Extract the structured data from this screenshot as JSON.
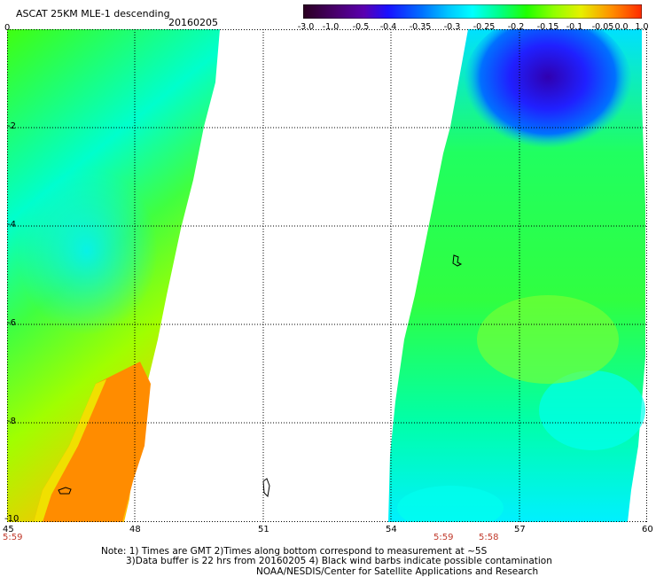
{
  "header": {
    "title": "ASCAT 25KM MLE-1 descending",
    "date": "20160205"
  },
  "colorbar": {
    "labels": [
      "-3.0",
      "-1.0",
      "-0.5",
      "-0.4",
      "-0.35",
      "-0.3",
      "-0.25",
      "-0.2",
      "-0.15",
      "-0.1",
      "-0.05",
      "0.0",
      "1.0"
    ],
    "colors": [
      "#2a0020",
      "#5a0090",
      "#1a10ff",
      "#0060ff",
      "#00b8ff",
      "#00ffff",
      "#00ff88",
      "#20ff00",
      "#90ff00",
      "#e6f000",
      "#ff9000",
      "#ff3a00"
    ]
  },
  "map": {
    "y_axis": [
      "0",
      "-2",
      "-4",
      "-6",
      "-8",
      "-10"
    ],
    "x_axis": [
      "45",
      "48",
      "51",
      "54",
      "57",
      "60"
    ],
    "times": [
      "5:59",
      "5:59",
      "5:58"
    ]
  },
  "footer": {
    "note1": "Note: 1) Times are GMT 2)Times along bottom correspond to measurement at ~5S",
    "note2": "3)Data buffer is 22 hrs from 20160205 4) Black wind barbs indicate possible contamination",
    "credit": "NOAA/NESDIS/Center for Satellite Applications and Research"
  }
}
